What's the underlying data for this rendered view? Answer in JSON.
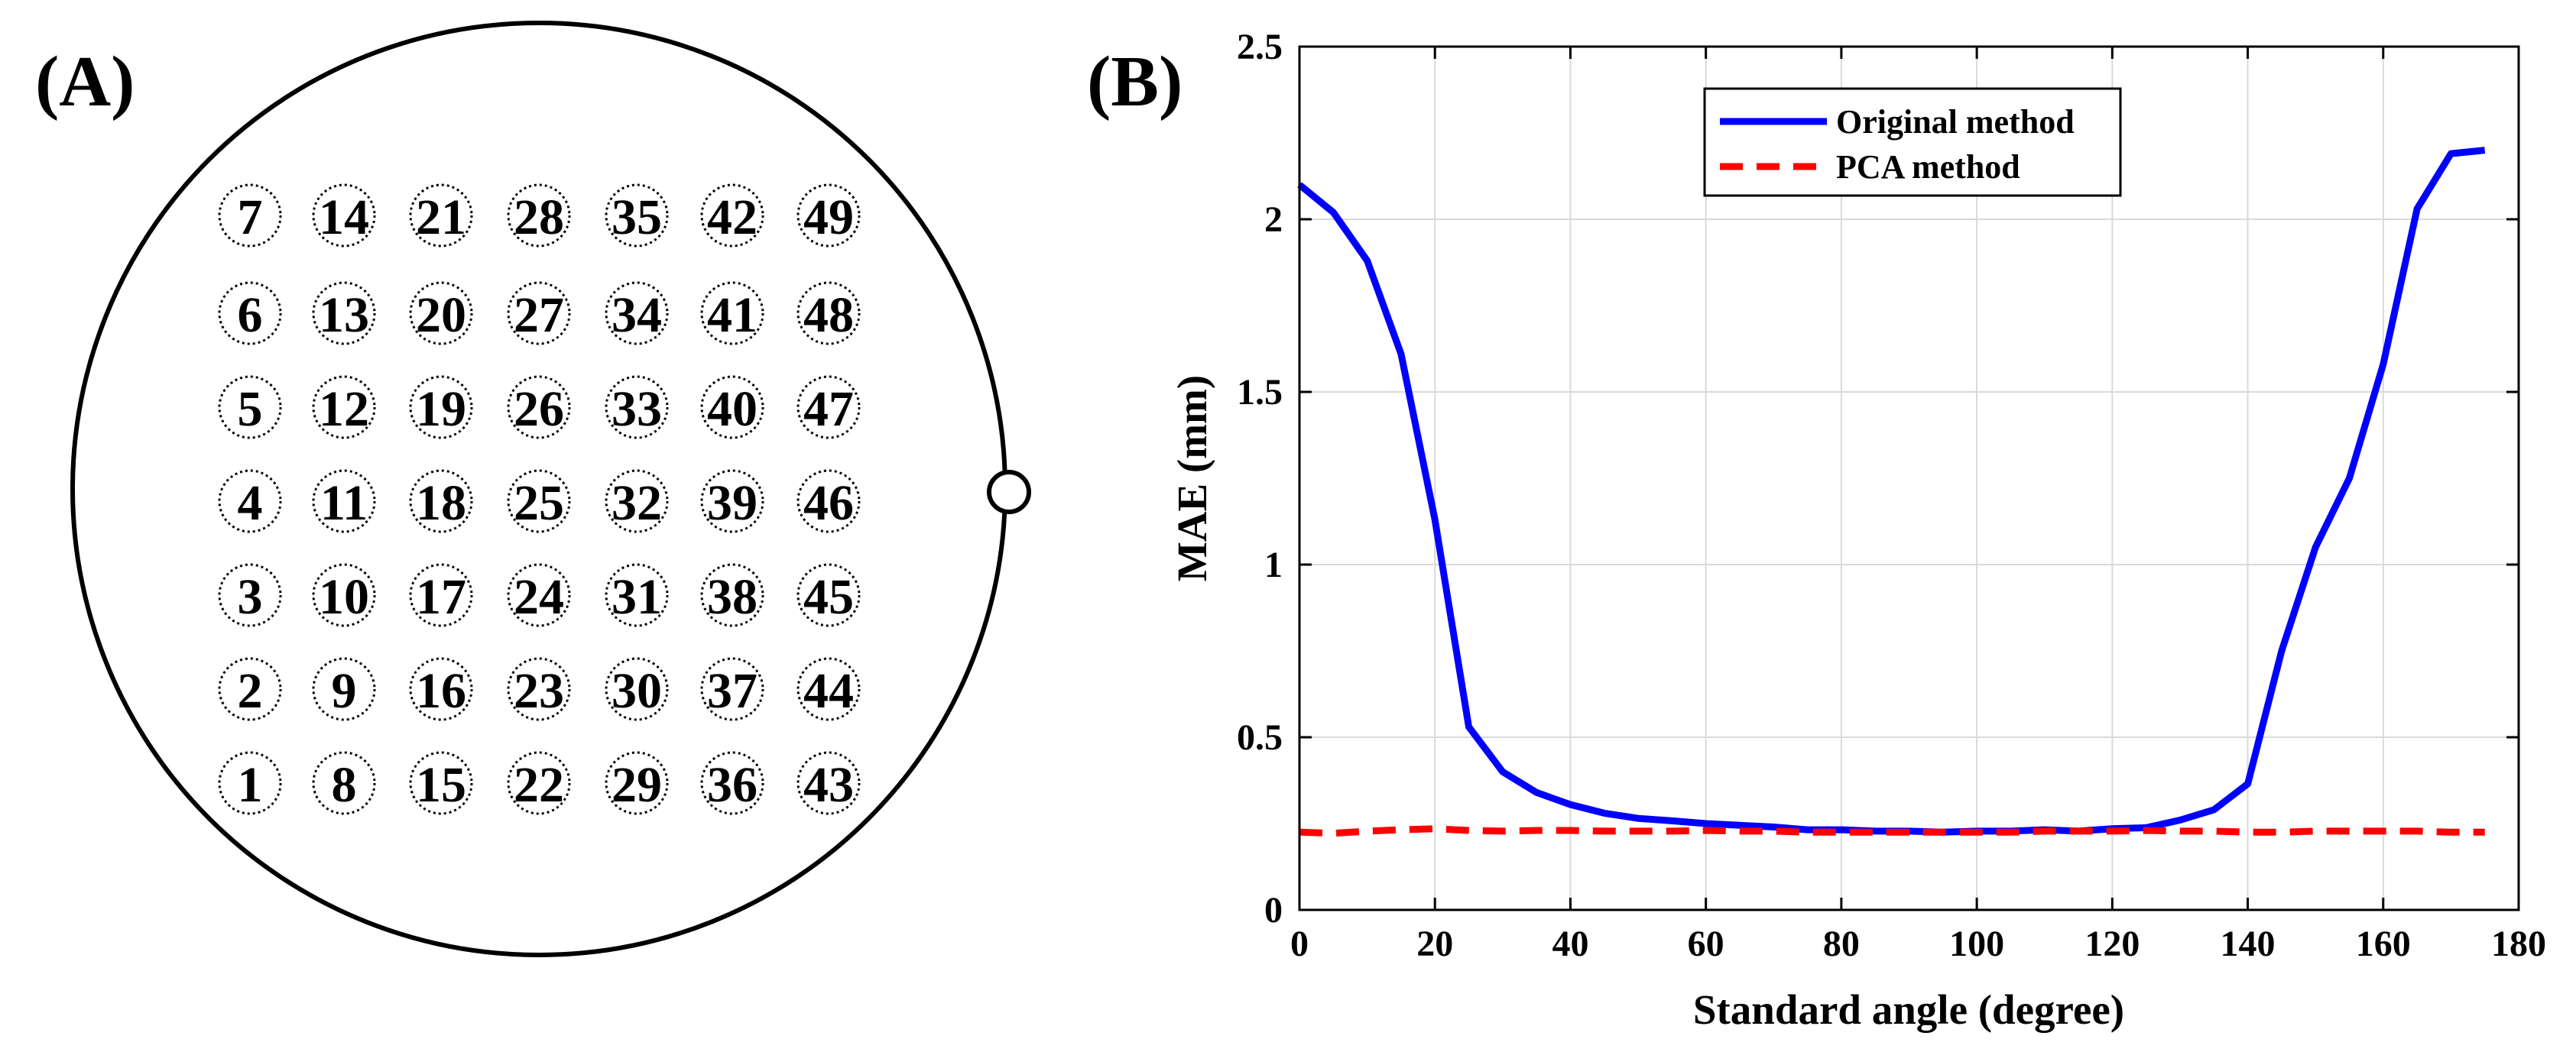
{
  "panel_a": {
    "label": "(A)",
    "columns": [
      [
        1,
        2,
        3,
        4,
        5,
        6,
        7
      ],
      [
        8,
        9,
        10,
        11,
        12,
        13,
        14
      ],
      [
        15,
        16,
        17,
        18,
        19,
        20,
        21
      ],
      [
        22,
        23,
        24,
        25,
        26,
        27,
        28
      ],
      [
        29,
        30,
        31,
        32,
        33,
        34,
        35
      ],
      [
        36,
        37,
        38,
        39,
        40,
        41,
        42
      ],
      [
        43,
        44,
        45,
        46,
        47,
        48,
        49
      ]
    ]
  },
  "chart_data": {
    "type": "line",
    "panel_label": "(B)",
    "title": "",
    "xlabel": "Standard angle (degree)",
    "ylabel": "MAE (mm)",
    "xlim": [
      0,
      180
    ],
    "ylim": [
      0,
      2.5
    ],
    "xticks": [
      "0",
      "20",
      "40",
      "60",
      "80",
      "100",
      "120",
      "140",
      "160",
      "180"
    ],
    "yticks": [
      "0",
      "0.5",
      "1",
      "1.5",
      "2",
      "2.5"
    ],
    "grid": true,
    "legend_position": "top-center",
    "x": [
      0,
      5,
      10,
      15,
      20,
      25,
      30,
      35,
      40,
      45,
      50,
      55,
      60,
      65,
      70,
      75,
      80,
      85,
      90,
      95,
      100,
      105,
      110,
      115,
      120,
      125,
      130,
      135,
      140,
      145,
      150,
      155,
      160,
      165,
      170,
      175
    ],
    "series": [
      {
        "name": "Original method",
        "color": "#0000ff",
        "style": "solid",
        "values": [
          2.1,
          2.02,
          1.88,
          1.61,
          1.13,
          0.53,
          0.4,
          0.34,
          0.305,
          0.28,
          0.265,
          0.258,
          0.25,
          0.245,
          0.24,
          0.232,
          0.232,
          0.228,
          0.228,
          0.225,
          0.228,
          0.228,
          0.232,
          0.228,
          0.235,
          0.238,
          0.26,
          0.29,
          0.365,
          0.75,
          1.05,
          1.25,
          1.58,
          2.03,
          2.19,
          2.2
        ]
      },
      {
        "name": "PCA method",
        "color": "#ff0000",
        "style": "dashed",
        "values": [
          0.225,
          0.222,
          0.228,
          0.232,
          0.235,
          0.23,
          0.228,
          0.23,
          0.23,
          0.228,
          0.228,
          0.228,
          0.23,
          0.228,
          0.228,
          0.225,
          0.225,
          0.225,
          0.225,
          0.225,
          0.225,
          0.225,
          0.228,
          0.228,
          0.228,
          0.23,
          0.228,
          0.228,
          0.225,
          0.225,
          0.228,
          0.228,
          0.228,
          0.228,
          0.225,
          0.225
        ]
      }
    ]
  }
}
